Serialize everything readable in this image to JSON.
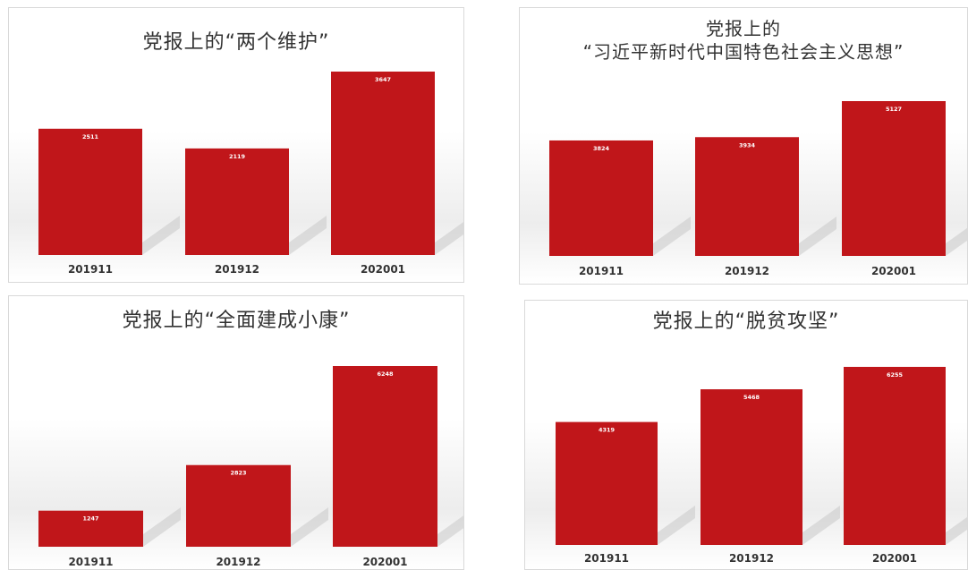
{
  "colors": {
    "bar": "#c0161a",
    "shadow": "#c8c8c8",
    "title": "#333333"
  },
  "chart_data": [
    {
      "type": "bar",
      "title": "党报上的“两个维护”",
      "categories": [
        "201911",
        "201912",
        "202001"
      ],
      "values": [
        2511,
        2119,
        3647
      ],
      "data_labels": [
        "2511",
        "2119",
        "3647"
      ],
      "xlabel": "",
      "ylabel": "",
      "grid": false
    },
    {
      "type": "bar",
      "title": "党报上的",
      "subtitle": "“习近平新时代中国特色社会主义思想”",
      "categories": [
        "201911",
        "201912",
        "202001"
      ],
      "values": [
        3824,
        3934,
        5127
      ],
      "data_labels": [
        "3824",
        "3934",
        "5127"
      ],
      "xlabel": "",
      "ylabel": "",
      "grid": false
    },
    {
      "type": "bar",
      "title": "党报上的“全面建成小康”",
      "categories": [
        "201911",
        "201912",
        "202001"
      ],
      "values": [
        1247,
        2823,
        6248
      ],
      "data_labels": [
        "1247",
        "2823",
        "6248"
      ],
      "xlabel": "",
      "ylabel": "",
      "grid": false
    },
    {
      "type": "bar",
      "title": "党报上的“脱贫攻坚”",
      "categories": [
        "201911",
        "201912",
        "202001"
      ],
      "values": [
        4319,
        5468,
        6255
      ],
      "data_labels": [
        "4319",
        "5468",
        "6255"
      ],
      "xlabel": "",
      "ylabel": "",
      "grid": false
    }
  ]
}
